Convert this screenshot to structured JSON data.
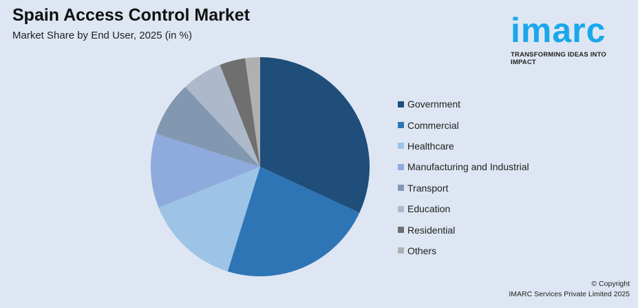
{
  "header": {
    "title": "Spain Access Control Market",
    "subtitle": "Market Share by End User, 2025 (in %)"
  },
  "logo": {
    "word": "imarc",
    "tagline": "TRANSFORMING IDEAS INTO IMPACT",
    "color": "#1aa7ec"
  },
  "chart_data": {
    "type": "pie",
    "title": "Spain Access Control Market",
    "subtitle": "Market Share by End User, 2025 (in %)",
    "categories": [
      "Government",
      "Commercial",
      "Healthcare",
      "Manufacturing and Industrial",
      "Transport",
      "Education",
      "Residential",
      "Others"
    ],
    "values": [
      31.9,
      22.9,
      14.1,
      11.0,
      8.1,
      6.0,
      3.8,
      2.2
    ],
    "colors": [
      "#1f4e7a",
      "#2e75b6",
      "#9dc3e6",
      "#8faadc",
      "#8297b0",
      "#adb9ca",
      "#6f6f6f",
      "#b0b0b0"
    ],
    "legend_position": "right"
  },
  "footer": {
    "copyright": "© Copyright",
    "company": "IMARC Services Private Limited 2025"
  }
}
